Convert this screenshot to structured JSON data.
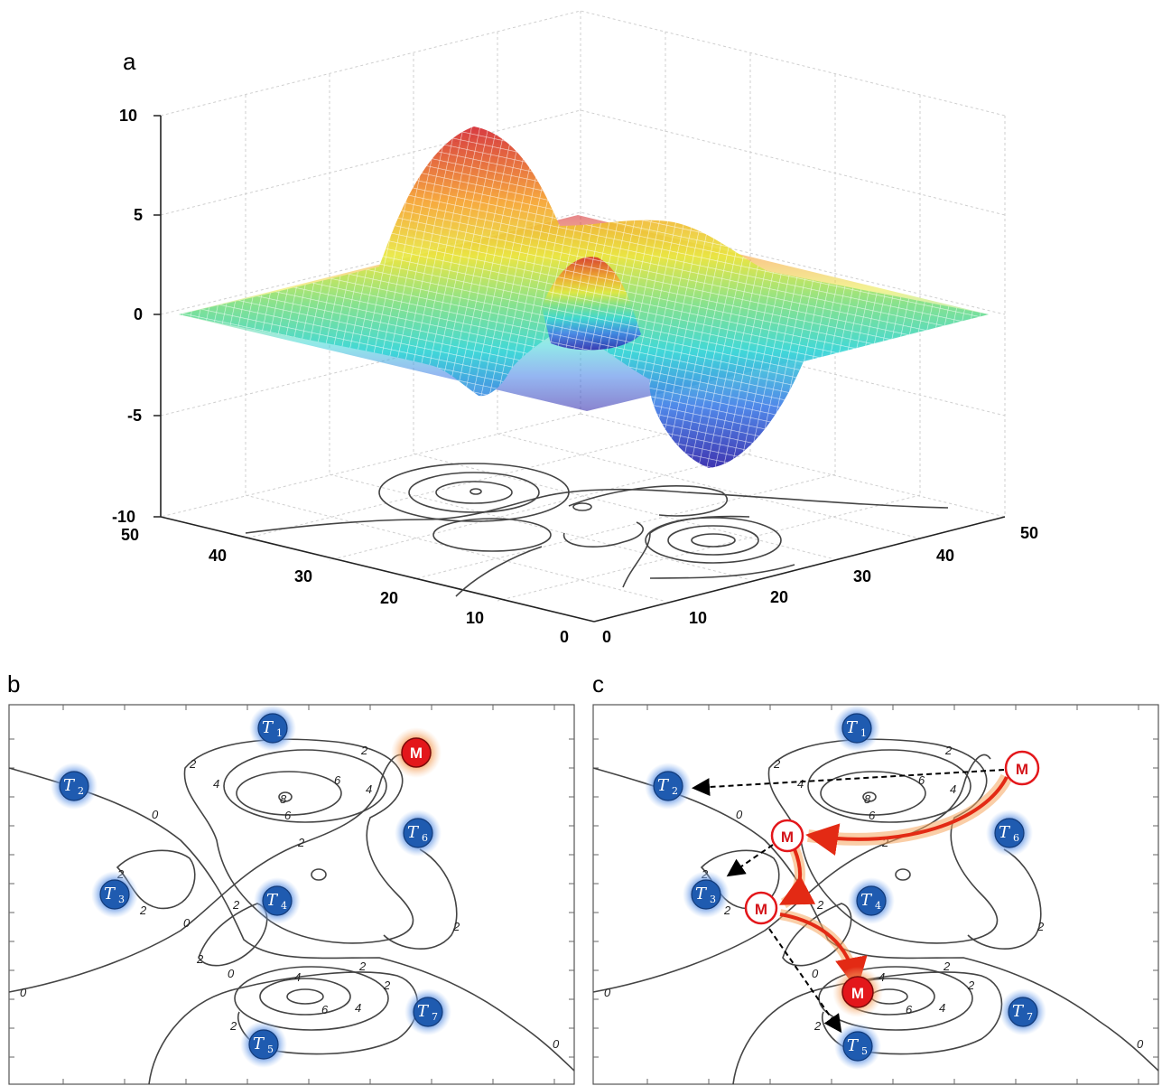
{
  "panel_a": {
    "label": "a",
    "z_ticks": [
      "10",
      "5",
      "0",
      "-5",
      "-10"
    ],
    "left_axis_ticks": [
      "50",
      "40",
      "30",
      "20",
      "10",
      "0"
    ],
    "right_axis_ticks": [
      "0",
      "10",
      "20",
      "30",
      "40",
      "50"
    ]
  },
  "panel_b": {
    "label": "b",
    "contour_labels": [
      "2",
      "4",
      "6",
      "8",
      "6",
      "4",
      "2",
      "0",
      "2",
      "2",
      "2",
      "0",
      "2",
      "2",
      "2",
      "0",
      "4",
      "6",
      "4",
      "2",
      "2",
      "2",
      "0",
      "0"
    ],
    "targets": [
      {
        "base": "T",
        "sub": "1"
      },
      {
        "base": "T",
        "sub": "2"
      },
      {
        "base": "T",
        "sub": "3"
      },
      {
        "base": "T",
        "sub": "4"
      },
      {
        "base": "T",
        "sub": "5"
      },
      {
        "base": "T",
        "sub": "6"
      },
      {
        "base": "T",
        "sub": "7"
      }
    ],
    "mobile": "M"
  },
  "panel_c": {
    "label": "c",
    "targets": [
      {
        "base": "T",
        "sub": "1"
      },
      {
        "base": "T",
        "sub": "2"
      },
      {
        "base": "T",
        "sub": "3"
      },
      {
        "base": "T",
        "sub": "4"
      },
      {
        "base": "T",
        "sub": "5"
      },
      {
        "base": "T",
        "sub": "6"
      },
      {
        "base": "T",
        "sub": "7"
      }
    ],
    "mobile_positions": [
      "M",
      "M",
      "M",
      "M"
    ]
  },
  "colors": {
    "target_fill": "#1f5bb0",
    "target_glow": "#4f86d9",
    "mobile_fill": "#e3171b",
    "mobile_glow": "#f39a4a",
    "path_arrow": "#e32a14"
  }
}
